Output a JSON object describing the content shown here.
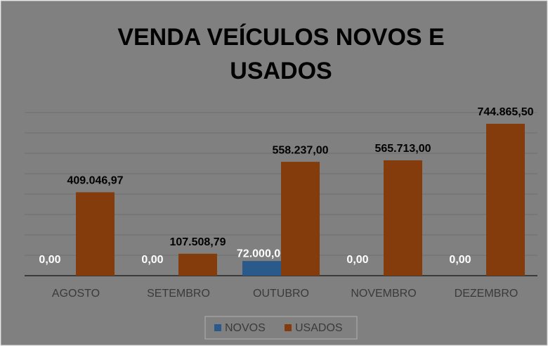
{
  "chart_data": {
    "type": "bar",
    "title": "VENDA VEÍCULOS NOVOS E USADOS",
    "categories": [
      "AGOSTO",
      "SETEMBRO",
      "OUTUBRO",
      "NOVEMBRO",
      "DEZEMBRO"
    ],
    "series": [
      {
        "name": "NOVOS",
        "color": "#2a5a8c",
        "values": [
          0,
          0,
          72000,
          0,
          0
        ],
        "value_labels": [
          "0,00",
          "0,00",
          "72.000,00",
          "0,00",
          "0,00"
        ]
      },
      {
        "name": "USADOS",
        "color": "#843c0c",
        "values": [
          409046.97,
          107508.79,
          558237,
          565713,
          744865.5
        ],
        "value_labels": [
          "409.046,97",
          "107.508,79",
          "558.237,00",
          "565.713,00",
          "744.865,50"
        ]
      }
    ],
    "ylim": [
      0,
      800000
    ],
    "yticks": [
      0,
      100000,
      200000,
      300000,
      400000,
      500000,
      600000,
      700000,
      800000
    ],
    "grid": true,
    "legend": "bottom"
  }
}
